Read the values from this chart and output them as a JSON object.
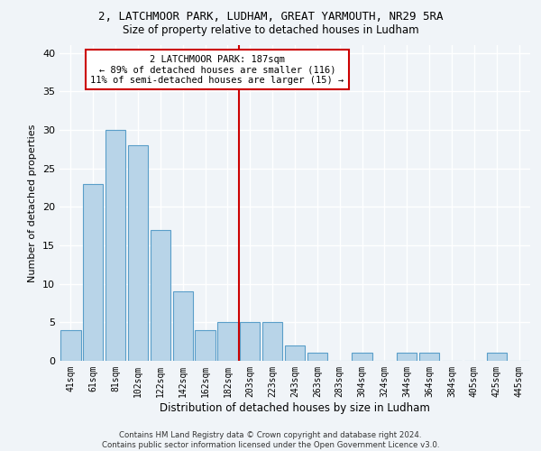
{
  "title1": "2, LATCHMOOR PARK, LUDHAM, GREAT YARMOUTH, NR29 5RA",
  "title2": "Size of property relative to detached houses in Ludham",
  "xlabel": "Distribution of detached houses by size in Ludham",
  "ylabel": "Number of detached properties",
  "footer1": "Contains HM Land Registry data © Crown copyright and database right 2024.",
  "footer2": "Contains public sector information licensed under the Open Government Licence v3.0.",
  "categories": [
    "41sqm",
    "61sqm",
    "81sqm",
    "102sqm",
    "122sqm",
    "142sqm",
    "162sqm",
    "182sqm",
    "203sqm",
    "223sqm",
    "243sqm",
    "263sqm",
    "283sqm",
    "304sqm",
    "324sqm",
    "344sqm",
    "364sqm",
    "384sqm",
    "405sqm",
    "425sqm",
    "445sqm"
  ],
  "values": [
    4,
    23,
    30,
    28,
    17,
    9,
    4,
    5,
    5,
    5,
    2,
    1,
    0,
    1,
    0,
    1,
    1,
    0,
    0,
    1,
    0
  ],
  "bar_color": "#b8d4e8",
  "bar_edge_color": "#5a9ec9",
  "vline_x": 7.5,
  "vline_color": "#cc0000",
  "annotation_text": "2 LATCHMOOR PARK: 187sqm\n← 89% of detached houses are smaller (116)\n11% of semi-detached houses are larger (15) →",
  "annotation_box_color": "#ffffff",
  "annotation_box_edge": "#cc0000",
  "background_color": "#f0f4f8",
  "grid_color": "#ffffff",
  "ylim": [
    0,
    41
  ],
  "yticks": [
    0,
    5,
    10,
    15,
    20,
    25,
    30,
    35,
    40
  ]
}
